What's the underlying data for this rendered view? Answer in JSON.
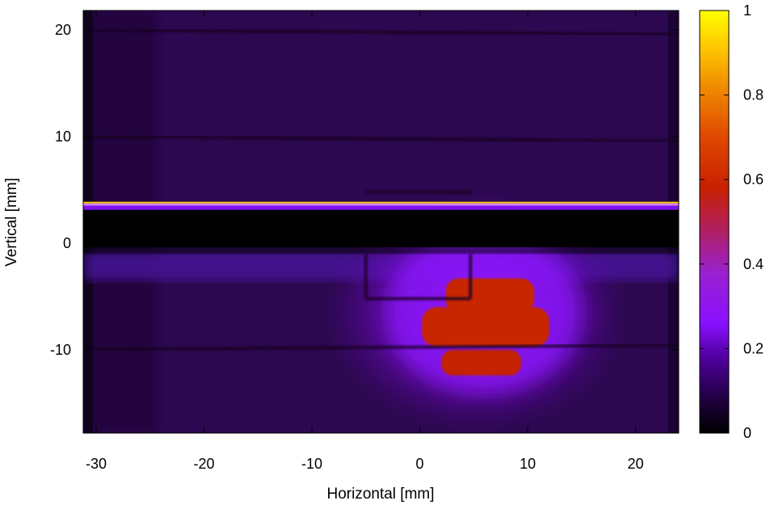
{
  "chart_data": {
    "type": "heatmap",
    "title": "",
    "xlabel": "Horizontal [mm]",
    "ylabel": "Vertical [mm]",
    "xlim": [
      -31.2,
      24
    ],
    "ylim": [
      -17.8,
      21.8
    ],
    "x_ticks": [
      -30,
      -20,
      -10,
      0,
      10,
      20
    ],
    "y_ticks": [
      -10,
      0,
      10,
      20
    ],
    "x_tick_labels": [
      "-30",
      "-20",
      "-10",
      "0",
      "10",
      "20"
    ],
    "y_tick_labels": [
      "-10",
      "0",
      "10",
      "20"
    ],
    "colorbar": {
      "range": [
        0,
        1
      ],
      "ticks": [
        0,
        0.2,
        0.4,
        0.6,
        0.8,
        1
      ],
      "tick_labels": [
        "0",
        "0.2",
        "0.4",
        "0.6",
        "0.8",
        "1"
      ],
      "palette": [
        "#000000",
        "#2a0050",
        "#6400a8",
        "#9a10ff",
        "#b030b0",
        "#cc2200",
        "#e05000",
        "#f08a00",
        "#ffd000",
        "#ffff00"
      ]
    },
    "description_features": {
      "background_level": 0.1,
      "grid_lines_x": [
        -25,
        -20,
        -10,
        0,
        10,
        20
      ],
      "grid_lines_y": [
        20,
        10,
        -10
      ],
      "shadow_band_y": [
        0.2,
        3.4
      ],
      "bright_line_y": 3.8,
      "hot_spot_center": [
        6,
        -6.5
      ],
      "hot_spot_level": 0.55
    }
  }
}
